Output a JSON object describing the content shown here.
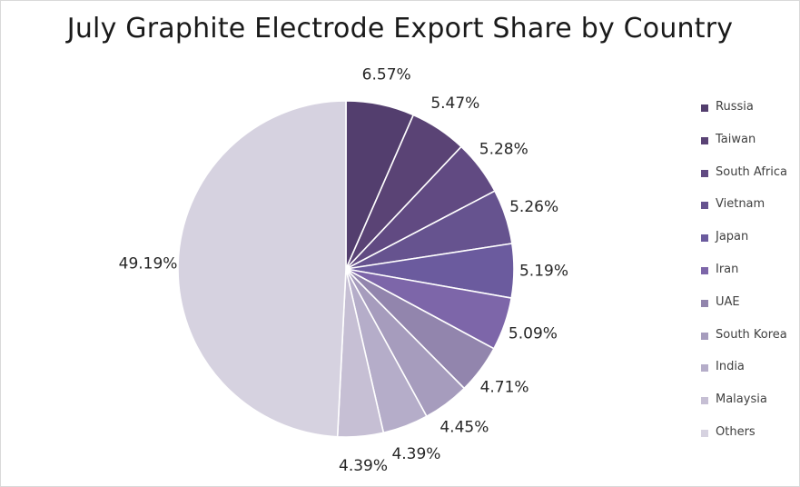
{
  "chart_data": {
    "type": "pie",
    "title": "July Graphite Electrode Export Share by Country",
    "legend_position": "right",
    "start_angle": "12 o'clock, clockwise",
    "slices": [
      {
        "label": "Russia",
        "value": 6.57,
        "value_label": "6.57%",
        "color": "#533e6e"
      },
      {
        "label": "Taiwan",
        "value": 5.47,
        "value_label": "5.47%",
        "color": "#5a4375"
      },
      {
        "label": "South Africa",
        "value": 5.28,
        "value_label": "5.28%",
        "color": "#614a82"
      },
      {
        "label": "Vietnam",
        "value": 5.26,
        "value_label": "5.26%",
        "color": "#66538f"
      },
      {
        "label": "Japan",
        "value": 5.19,
        "value_label": "5.19%",
        "color": "#6b5b9e"
      },
      {
        "label": "Iran",
        "value": 5.09,
        "value_label": "5.09%",
        "color": "#7d66a9"
      },
      {
        "label": "UAE",
        "value": 4.71,
        "value_label": "4.71%",
        "color": "#9285ad"
      },
      {
        "label": "South Korea",
        "value": 4.45,
        "value_label": "4.45%",
        "color": "#a69cbd"
      },
      {
        "label": "India",
        "value": 4.39,
        "value_label": "4.39%",
        "color": "#b5adc9"
      },
      {
        "label": "Malaysia",
        "value": 4.39,
        "value_label": "4.39%",
        "color": "#c6bfd4"
      },
      {
        "label": "Others",
        "value": 49.19,
        "value_label": "49.19%",
        "color": "#d6d2e0"
      }
    ]
  }
}
